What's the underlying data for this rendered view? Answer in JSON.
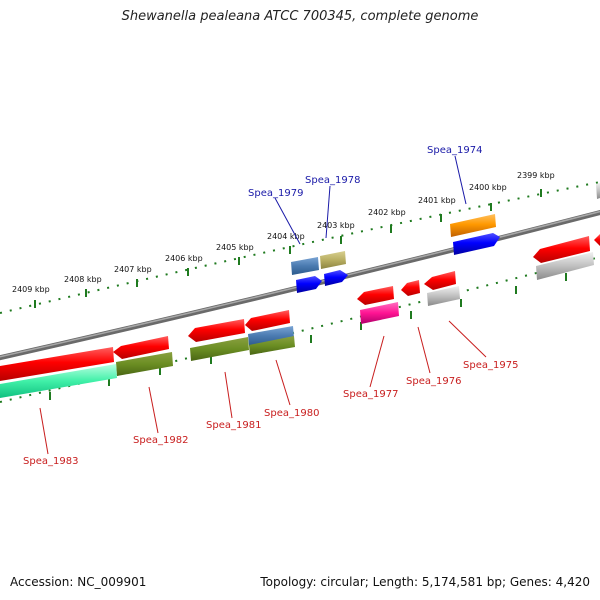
{
  "header": {
    "title": "Shewanella pealeana ATCC 700345, complete genome"
  },
  "footer": {
    "accession": "Accession: NC_009901",
    "summary": "Topology: circular; Length: 5,174,581 bp; Genes: 4,420"
  },
  "ruler_labels": [
    "2399 kbp",
    "2400 kbp",
    "2401 kbp",
    "2402 kbp",
    "2403 kbp",
    "2404 kbp",
    "2405 kbp",
    "2406 kbp",
    "2407 kbp",
    "2408 kbp",
    "2409 kbp"
  ],
  "gene_labels_forward": [
    "Spea_1974",
    "Spea_1978",
    "Spea_1979"
  ],
  "gene_labels_reverse": [
    "Spea_1975",
    "Spea_1976",
    "Spea_1977",
    "Spea_1980",
    "Spea_1981",
    "Spea_1982",
    "Spea_1983"
  ],
  "colors": {
    "forward_label": "#1a1aa8",
    "reverse_label": "#c81e1e",
    "backbone": "#808080",
    "ticks": "#1f7a1f"
  }
}
